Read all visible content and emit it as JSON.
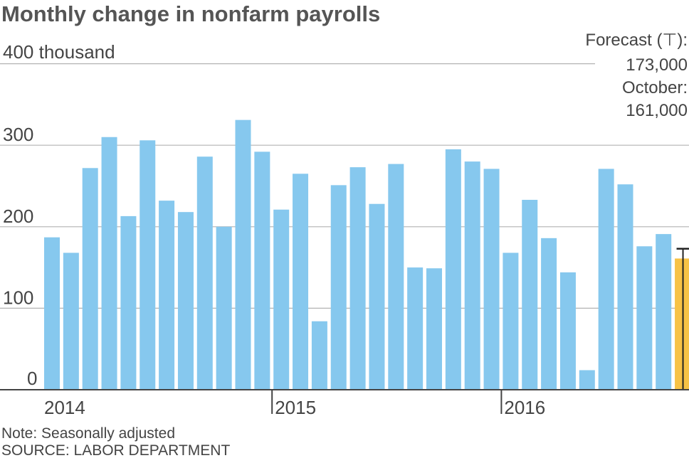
{
  "chart_data": {
    "type": "bar",
    "title": "Monthly change in nonfarm payrolls",
    "ylabel_unit": "400 thousand",
    "ylim": [
      0,
      400
    ],
    "yticks": [
      0,
      100,
      200,
      300,
      400
    ],
    "ytick_labels": [
      "0",
      "100",
      "200",
      "300",
      "400 thousand"
    ],
    "year_labels": [
      {
        "label": "2014",
        "month_index": 0
      },
      {
        "label": "2015",
        "month_index": 12
      },
      {
        "label": "2016",
        "month_index": 24
      }
    ],
    "categories": [
      "2014-01",
      "2014-02",
      "2014-03",
      "2014-04",
      "2014-05",
      "2014-06",
      "2014-07",
      "2014-08",
      "2014-09",
      "2014-10",
      "2014-11",
      "2014-12",
      "2015-01",
      "2015-02",
      "2015-03",
      "2015-04",
      "2015-05",
      "2015-06",
      "2015-07",
      "2015-08",
      "2015-09",
      "2015-10",
      "2015-11",
      "2015-12",
      "2016-01",
      "2016-02",
      "2016-03",
      "2016-04",
      "2016-05",
      "2016-06",
      "2016-07",
      "2016-08",
      "2016-09",
      "2016-10"
    ],
    "values": [
      187,
      168,
      272,
      310,
      213,
      306,
      232,
      218,
      286,
      200,
      331,
      292,
      221,
      265,
      84,
      251,
      273,
      228,
      277,
      150,
      149,
      295,
      280,
      271,
      168,
      233,
      186,
      144,
      24,
      271,
      252,
      176,
      191,
      161
    ],
    "highlight_index": 33,
    "forecast_value": 173,
    "bar_color": "#86c8ee",
    "highlight_color": "#f7c245",
    "forecast_annotation": [
      "Forecast (⊤):",
      "173,000",
      "October:",
      "161,000"
    ],
    "grid": true
  },
  "note": "Note: Seasonally adjusted",
  "source": "SOURCE: LABOR DEPARTMENT"
}
